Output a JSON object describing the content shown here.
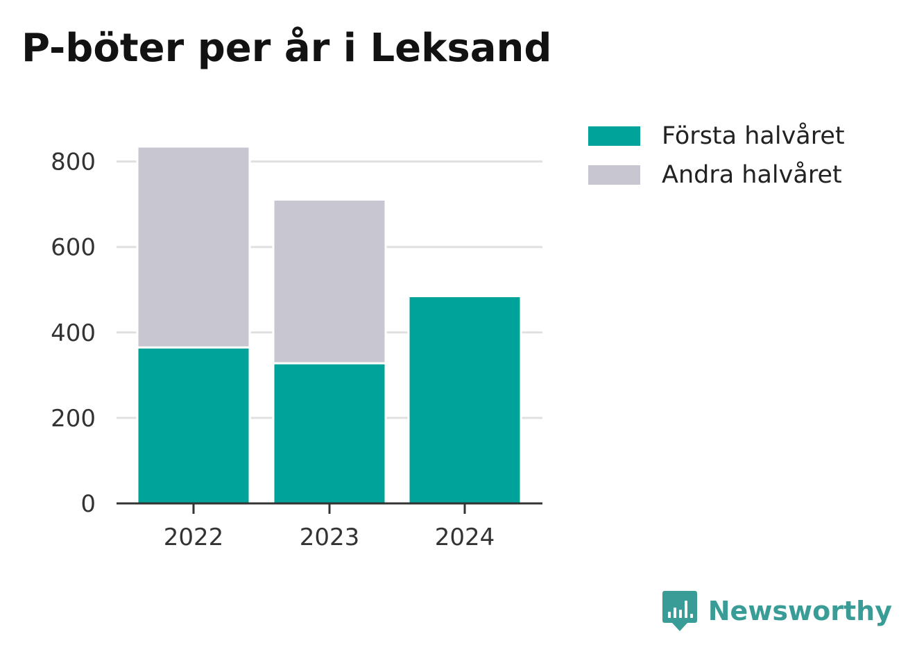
{
  "title": "P-böter per år i Leksand",
  "brand": {
    "name": "Newsworthy",
    "logo_icon": "newsworthy-bar-chart-speech-bubble-icon",
    "color": "#3a9c96"
  },
  "chart_data": {
    "type": "bar",
    "stacked": true,
    "title": "P-böter per år i Leksand",
    "xlabel": "",
    "ylabel": "",
    "categories": [
      "2022",
      "2023",
      "2024"
    ],
    "series": [
      {
        "name": "Första halvåret",
        "color": "#00a39a",
        "values": [
          365,
          328,
          485
        ]
      },
      {
        "name": "Andra halvåret",
        "color": "#c8c7d1",
        "values": [
          470,
          383,
          0
        ]
      }
    ],
    "ylim": [
      0,
      900
    ],
    "yticks": [
      0,
      200,
      400,
      600,
      800
    ],
    "grid": true,
    "legend": "top-right"
  }
}
